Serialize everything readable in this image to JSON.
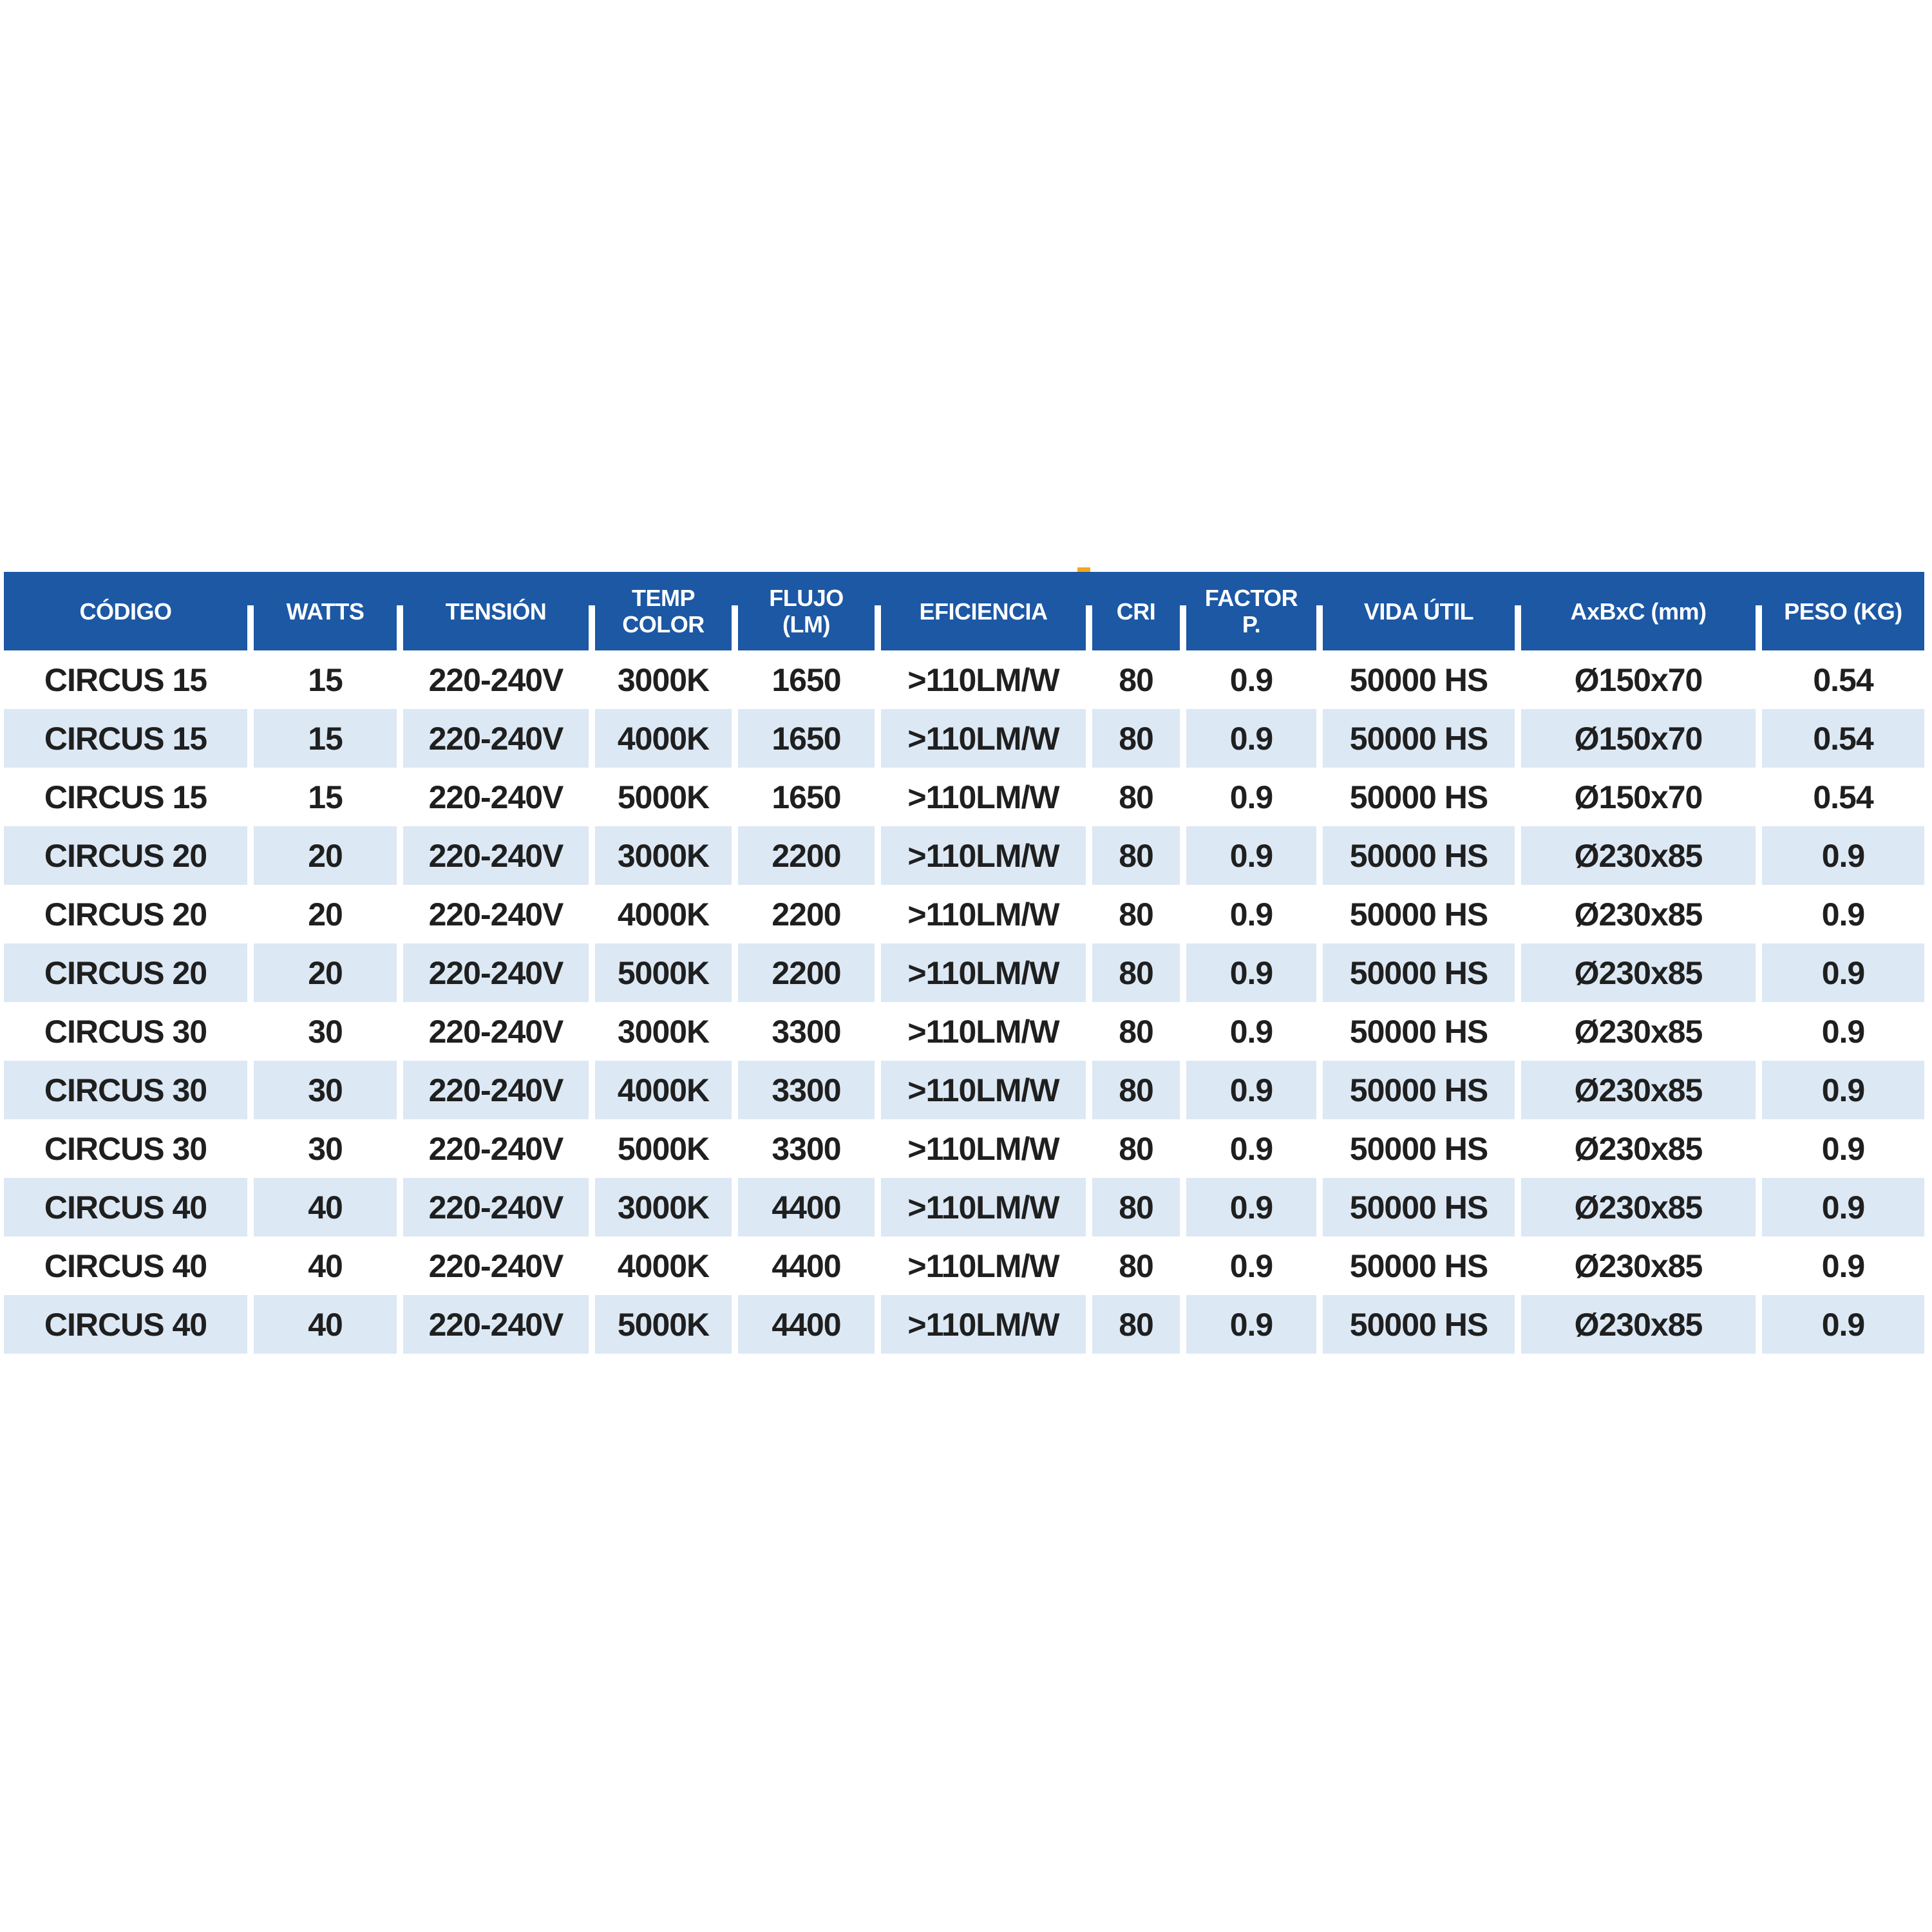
{
  "colors": {
    "header_bg": "#1c58a4",
    "header_text": "#ffffff",
    "row_alt_bg": "#dce8f4",
    "body_text": "#1f1f1f",
    "marker_orange": "#f2a71f",
    "page_bg": "#ffffff"
  },
  "table": {
    "columns": [
      {
        "key": "codigo",
        "label": "CÓDIGO",
        "lines": [
          "CÓDIGO"
        ]
      },
      {
        "key": "watts",
        "label": "WATTS",
        "lines": [
          "WATTS"
        ]
      },
      {
        "key": "tension",
        "label": "TENSIÓN",
        "lines": [
          "TENSIÓN"
        ]
      },
      {
        "key": "temp-color",
        "label": "TEMP COLOR",
        "lines": [
          "TEMP",
          "COLOR"
        ]
      },
      {
        "key": "flujo-lm",
        "label": "FLUJO (LM)",
        "lines": [
          "FLUJO",
          "(LM)"
        ]
      },
      {
        "key": "eficiencia",
        "label": "EFICIENCIA",
        "lines": [
          "EFICIENCIA"
        ]
      },
      {
        "key": "cri",
        "label": "CRI",
        "lines": [
          "CRI"
        ]
      },
      {
        "key": "factor-p",
        "label": "FACTOR P.",
        "lines": [
          "FACTOR",
          "P."
        ]
      },
      {
        "key": "vida-util",
        "label": "VIDA ÚTIL",
        "lines": [
          "VIDA ÚTIL"
        ]
      },
      {
        "key": "axbxc-mm",
        "label": "AxBxC (mm)",
        "lines": [
          "AxBxC (mm)"
        ]
      },
      {
        "key": "peso-kg",
        "label": "PESO (KG)",
        "lines": [
          "PESO (KG)"
        ]
      }
    ],
    "rows": [
      [
        "CIRCUS 15",
        "15",
        "220-240V",
        "3000K",
        "1650",
        ">110LM/W",
        "80",
        "0.9",
        "50000 HS",
        "Ø150x70",
        "0.54"
      ],
      [
        "CIRCUS 15",
        "15",
        "220-240V",
        "4000K",
        "1650",
        ">110LM/W",
        "80",
        "0.9",
        "50000 HS",
        "Ø150x70",
        "0.54"
      ],
      [
        "CIRCUS 15",
        "15",
        "220-240V",
        "5000K",
        "1650",
        ">110LM/W",
        "80",
        "0.9",
        "50000 HS",
        "Ø150x70",
        "0.54"
      ],
      [
        "CIRCUS 20",
        "20",
        "220-240V",
        "3000K",
        "2200",
        ">110LM/W",
        "80",
        "0.9",
        "50000 HS",
        "Ø230x85",
        "0.9"
      ],
      [
        "CIRCUS 20",
        "20",
        "220-240V",
        "4000K",
        "2200",
        ">110LM/W",
        "80",
        "0.9",
        "50000 HS",
        "Ø230x85",
        "0.9"
      ],
      [
        "CIRCUS 20",
        "20",
        "220-240V",
        "5000K",
        "2200",
        ">110LM/W",
        "80",
        "0.9",
        "50000 HS",
        "Ø230x85",
        "0.9"
      ],
      [
        "CIRCUS 30",
        "30",
        "220-240V",
        "3000K",
        "3300",
        ">110LM/W",
        "80",
        "0.9",
        "50000 HS",
        "Ø230x85",
        "0.9"
      ],
      [
        "CIRCUS 30",
        "30",
        "220-240V",
        "4000K",
        "3300",
        ">110LM/W",
        "80",
        "0.9",
        "50000 HS",
        "Ø230x85",
        "0.9"
      ],
      [
        "CIRCUS 30",
        "30",
        "220-240V",
        "5000K",
        "3300",
        ">110LM/W",
        "80",
        "0.9",
        "50000 HS",
        "Ø230x85",
        "0.9"
      ],
      [
        "CIRCUS 40",
        "40",
        "220-240V",
        "3000K",
        "4400",
        ">110LM/W",
        "80",
        "0.9",
        "50000 HS",
        "Ø230x85",
        "0.9"
      ],
      [
        "CIRCUS 40",
        "40",
        "220-240V",
        "4000K",
        "4400",
        ">110LM/W",
        "80",
        "0.9",
        "50000 HS",
        "Ø230x85",
        "0.9"
      ],
      [
        "CIRCUS 40",
        "40",
        "220-240V",
        "5000K",
        "4400",
        ">110LM/W",
        "80",
        "0.9",
        "50000 HS",
        "Ø230x85",
        "0.9"
      ]
    ],
    "zebra": "even rows (2nd, 4th, ...) use row_alt_bg; odd rows are white"
  }
}
